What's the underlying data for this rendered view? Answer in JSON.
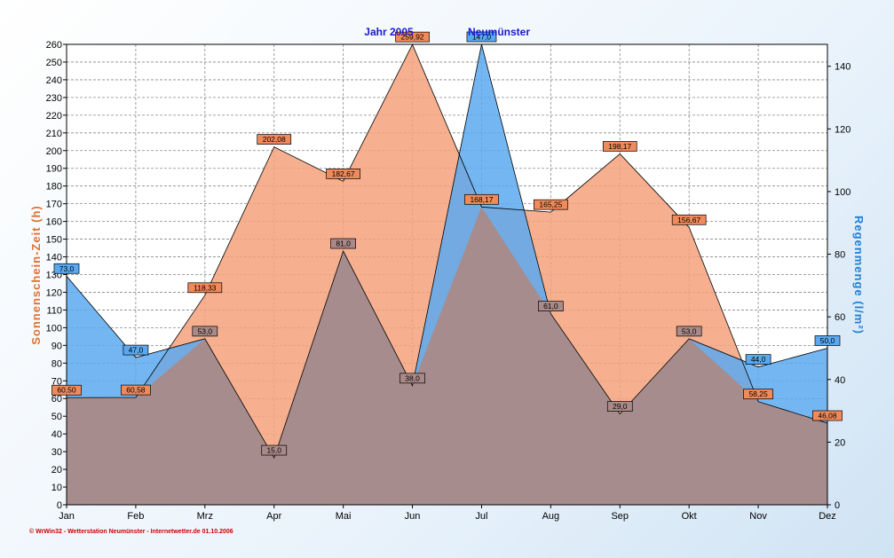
{
  "chart_data": {
    "type": "area",
    "title_parts": [
      "Jahr 2005",
      "Neumünster"
    ],
    "categories": [
      "Jan",
      "Feb",
      "Mrz",
      "Apr",
      "Mai",
      "Jun",
      "Jul",
      "Aug",
      "Sep",
      "Okt",
      "Nov",
      "Dez"
    ],
    "ylabel_left": "Sonnenschein-Zeit  (h)",
    "ylabel_right": "Regenmenge  (l/m²)",
    "ylim_left": [
      0,
      260
    ],
    "ylim_right": [
      0,
      147
    ],
    "yticks_left": [
      0,
      10,
      20,
      30,
      40,
      50,
      60,
      70,
      80,
      90,
      100,
      110,
      120,
      130,
      140,
      150,
      160,
      170,
      180,
      190,
      200,
      210,
      220,
      230,
      240,
      250,
      260
    ],
    "yticks_right": [
      0,
      20,
      40,
      60,
      80,
      100,
      120,
      140
    ],
    "grid": true,
    "series": [
      {
        "name": "Sonnenschein-Zeit",
        "axis": "left",
        "color": "#f4a27c",
        "values": [
          60.5,
          60.58,
          118.33,
          202.08,
          182.67,
          259.92,
          168.17,
          165.25,
          198.17,
          156.67,
          58.25,
          46.08
        ],
        "labels": [
          "60,50",
          "60,58",
          "118,33",
          "202,08",
          "182,67",
          "259,92",
          "168,17",
          "165,25",
          "198,17",
          "156,67",
          "58,25",
          "46,08"
        ]
      },
      {
        "name": "Regenmenge",
        "axis": "right",
        "color": "#5aa9f0",
        "values": [
          73.0,
          47.0,
          53.0,
          15.0,
          81.0,
          38.0,
          147.0,
          61.0,
          29.0,
          53.0,
          44.0,
          50.0
        ],
        "labels": [
          "73,0",
          "47,0",
          "53,0",
          "15,0",
          "81,0",
          "38,0",
          "147,0",
          "61,0",
          "29,0",
          "53,0",
          "44,0",
          "50,0"
        ]
      }
    ]
  },
  "footer": "© WrWin32 - Wetterstation Neumünster - Internetwetter.de  01.10.2006"
}
